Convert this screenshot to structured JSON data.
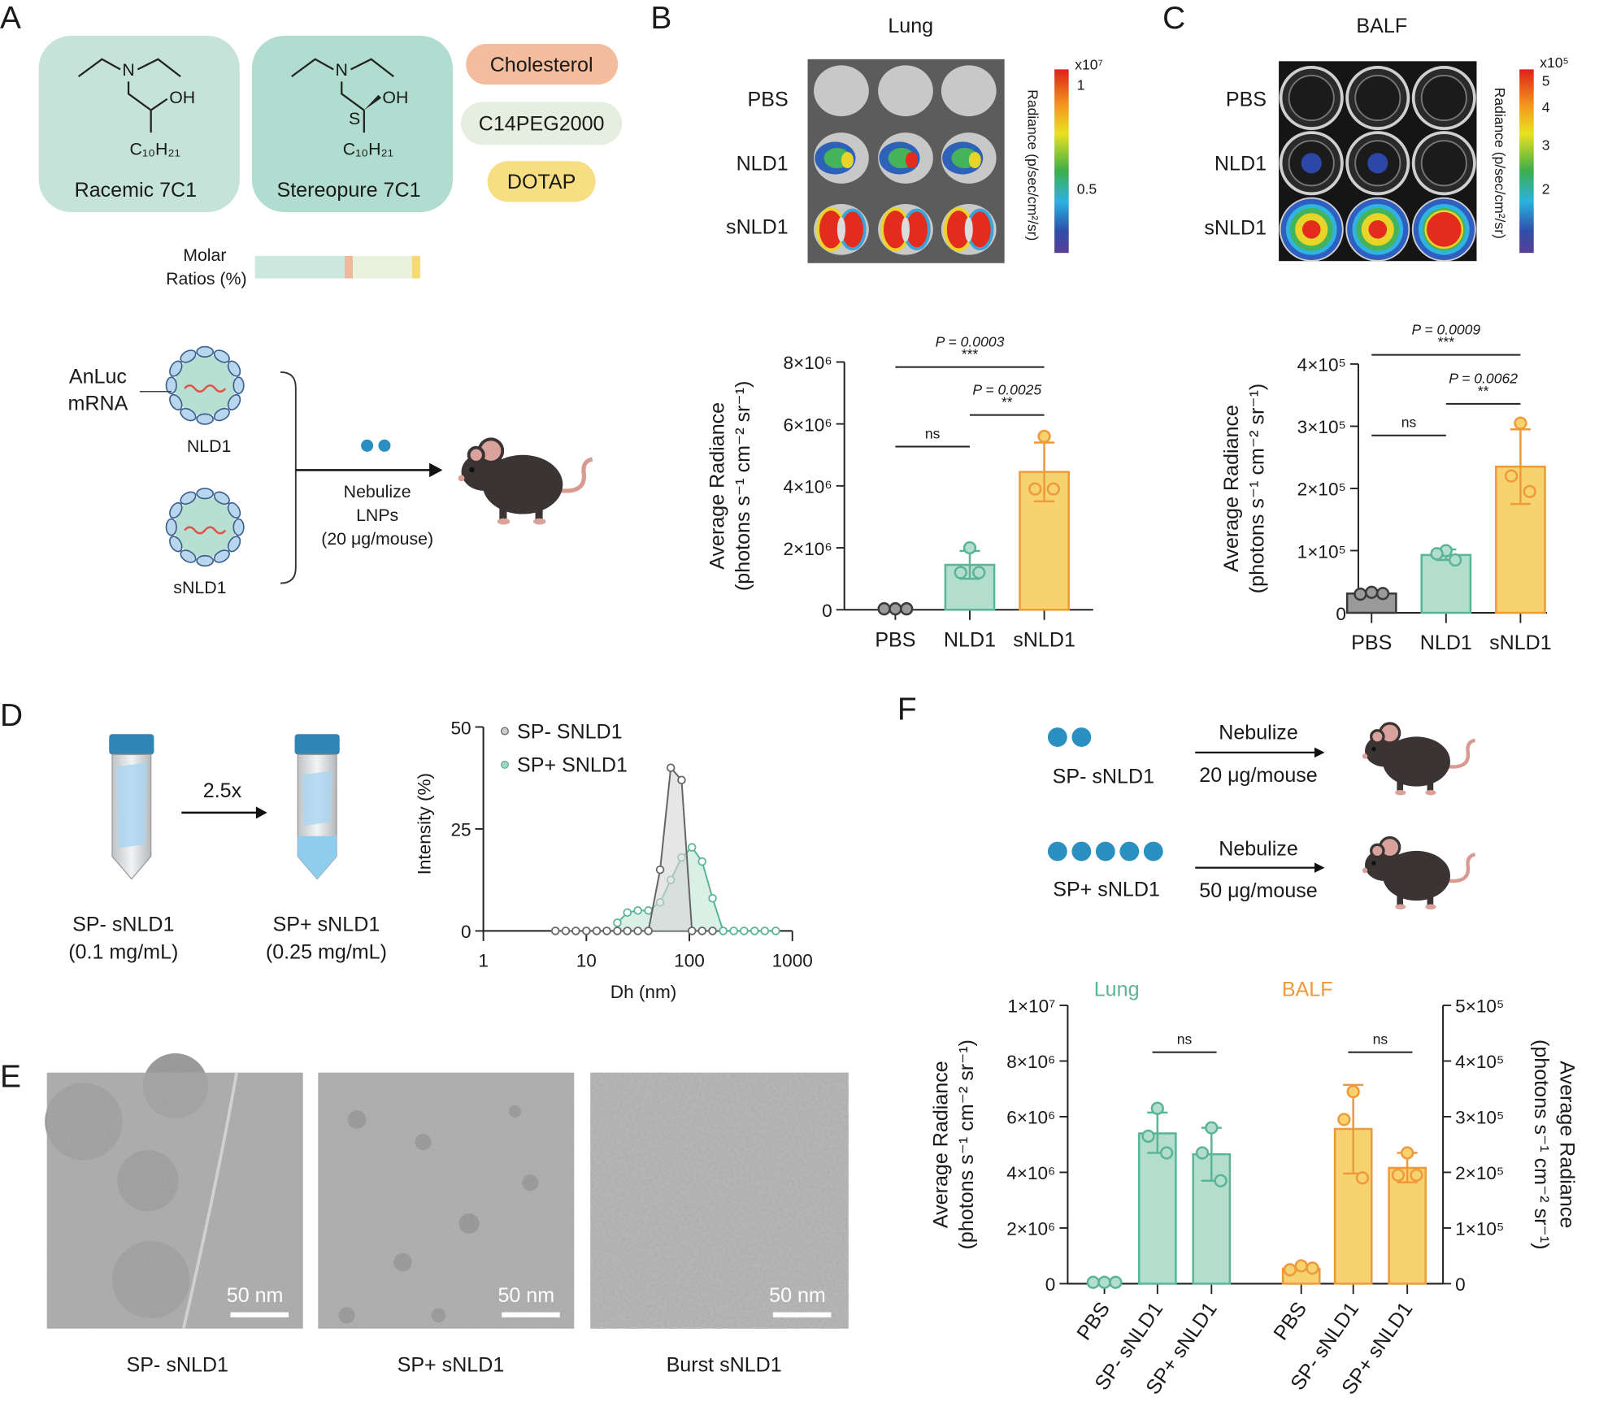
{
  "panel_labels": [
    "A",
    "B",
    "C",
    "D",
    "E",
    "F"
  ],
  "colors": {
    "teal_fill": "#b3dece",
    "teal_stroke": "#5ab596",
    "orange_fill": "#f7d36f",
    "orange_stroke": "#ef9a3a",
    "gray_fill": "#9a9a9a",
    "gray_stroke": "#3a3a3a",
    "racemic_box": "#c6e3da",
    "stereopure_box": "#b1ddd0",
    "cholesterol": "#f3bc9c",
    "peg": "#e6efdf",
    "dotap": "#f7de82",
    "lnp_dot": "#2a8fc1"
  },
  "panelA": {
    "lipids": [
      "Racemic 7C1",
      "Stereopure 7C1"
    ],
    "chem": {
      "N": "N",
      "OH": "OH",
      "S": "S",
      "chain": "C₁₀H₂₁"
    },
    "components": [
      "Cholesterol",
      "C14PEG2000",
      "DOTAP"
    ],
    "molar_label": [
      "Molar",
      "Ratios (%)"
    ],
    "mrna_label": [
      "AnLuc",
      "mRNA"
    ],
    "lnp": [
      "NLD1",
      "sNLD1"
    ],
    "nebulize": [
      "Nebulize",
      "LNPs",
      "(20 μg/mouse)"
    ]
  },
  "panelB": {
    "title": "Lung",
    "rows": [
      "PBS",
      "NLD1",
      "sNLD1"
    ],
    "colorbar": {
      "exp": "x10⁷",
      "ticks": [
        "1",
        "0.5"
      ],
      "label": "Radiance (p/sec/cm²/sr)"
    }
  },
  "panelC": {
    "title": "BALF",
    "rows": [
      "PBS",
      "NLD1",
      "sNLD1"
    ],
    "colorbar": {
      "exp": "x10⁵",
      "ticks": [
        "5",
        "4",
        "3",
        "2"
      ],
      "label": "Radiance (p/sec/cm²/sr)"
    }
  },
  "panelD": {
    "tubes": [
      {
        "name": "SP- sNLD1",
        "conc": "(0.1 mg/mL)"
      },
      {
        "name": "SP+ sNLD1",
        "conc": "(0.25 mg/mL)"
      }
    ],
    "arrow": "2.5x"
  },
  "panelE": {
    "images": [
      {
        "caption": "SP- sNLD1",
        "scale": "50 nm"
      },
      {
        "caption": "SP+ sNLD1",
        "scale": "50 nm"
      },
      {
        "caption": "Burst sNLD1",
        "scale": "50 nm"
      }
    ]
  },
  "panelF": {
    "groups": [
      {
        "label": "SP- sNLD1",
        "arrow_top": "Nebulize",
        "arrow_bottom": "20 μg/mouse",
        "dots": 2
      },
      {
        "label": "SP+ sNLD1",
        "arrow_top": "Nebulize",
        "arrow_bottom": "50 μg/mouse",
        "dots": 5
      }
    ]
  },
  "chart_data": [
    {
      "id": "B",
      "type": "bar",
      "title": "",
      "categories": [
        "PBS",
        "NLD1",
        "sNLD1"
      ],
      "values": [
        30000,
        1450000,
        4450000
      ],
      "points": [
        [
          30000,
          30000,
          30000
        ],
        [
          2000000,
          1200000,
          1200000
        ],
        [
          5600000,
          3900000,
          3900000
        ]
      ],
      "errors": [
        [
          0,
          60000
        ],
        [
          1000000,
          1900000
        ],
        [
          3500000,
          5400000
        ]
      ],
      "series_colors": [
        "gray",
        "teal",
        "orange"
      ],
      "ylabel": [
        "Average Radiance",
        "(photons s⁻¹ cm⁻² sr⁻¹)"
      ],
      "ylim": [
        0,
        8000000
      ],
      "yticks": [
        0,
        2000000,
        4000000,
        6000000,
        8000000
      ],
      "ytick_labels": [
        "0",
        "2×10⁶",
        "4×10⁶",
        "6×10⁶",
        "8×10⁶"
      ],
      "significance": [
        {
          "from": 0,
          "to": 1,
          "p": "",
          "stars": "ns"
        },
        {
          "from": 1,
          "to": 2,
          "p": "P = 0.0025",
          "stars": "**"
        },
        {
          "from": 0,
          "to": 2,
          "p": "P = 0.0003",
          "stars": "***"
        }
      ]
    },
    {
      "id": "C",
      "type": "bar",
      "title": "",
      "categories": [
        "PBS",
        "NLD1",
        "sNLD1"
      ],
      "values": [
        31000,
        93000,
        235000
      ],
      "points": [
        [
          30000,
          33000,
          31000
        ],
        [
          100000,
          95000,
          85000
        ],
        [
          305000,
          220000,
          195000
        ]
      ],
      "errors": [
        [
          27000,
          35000
        ],
        [
          85000,
          102000
        ],
        [
          175000,
          295000
        ]
      ],
      "series_colors": [
        "gray",
        "teal",
        "orange"
      ],
      "ylabel": [
        "Average Radiance",
        "(photons s⁻¹ cm⁻² sr⁻¹)"
      ],
      "ylim": [
        0,
        400000
      ],
      "yticks": [
        0,
        100000,
        200000,
        300000,
        400000
      ],
      "ytick_labels": [
        "0",
        "1×10⁵",
        "2×10⁵",
        "3×10⁵",
        "4×10⁵"
      ],
      "significance": [
        {
          "from": 0,
          "to": 1,
          "p": "",
          "stars": "ns"
        },
        {
          "from": 1,
          "to": 2,
          "p": "P = 0.0062",
          "stars": "**"
        },
        {
          "from": 0,
          "to": 2,
          "p": "P = 0.0009",
          "stars": "***"
        }
      ]
    },
    {
      "id": "D",
      "type": "line",
      "title": "",
      "xlabel": "Dh (nm)",
      "ylabel": "Intensity (%)",
      "xscale": "log",
      "xlim": [
        1,
        1000
      ],
      "ylim": [
        0,
        50
      ],
      "xticks": [
        1,
        10,
        100,
        1000
      ],
      "xtick_labels": [
        "1",
        "10",
        "100",
        "1000"
      ],
      "yticks": [
        0,
        25,
        50
      ],
      "ytick_labels": [
        "0",
        "25",
        "50"
      ],
      "legend_position": "top-left",
      "series": [
        {
          "name": "SP- SNLD1",
          "color": "gray",
          "x": [
            5,
            6.3,
            7.9,
            10,
            12.6,
            15.8,
            20,
            25,
            31.6,
            40,
            52,
            66,
            84,
            106,
            133,
            168
          ],
          "y": [
            0,
            0,
            0,
            0,
            0,
            0,
            0,
            0,
            0,
            0,
            15,
            40,
            37,
            0,
            0,
            0
          ]
        },
        {
          "name": "SP+ SNLD1",
          "color": "teal",
          "x": [
            20,
            25,
            31.6,
            40,
            52,
            66,
            84,
            106,
            133,
            168,
            213,
            270,
            340,
            430,
            540,
            690
          ],
          "y": [
            2,
            4.5,
            5,
            5,
            7,
            12.5,
            18,
            20.5,
            17,
            8,
            0,
            0,
            0,
            0,
            0,
            0
          ]
        }
      ]
    },
    {
      "id": "F",
      "type": "bar",
      "title": "",
      "groups": [
        {
          "name": "Lung",
          "axis": "left",
          "color": "teal",
          "categories": [
            "PBS",
            "SP- sNLD1",
            "SP+ sNLD1"
          ],
          "values": [
            50000,
            5400000,
            4650000
          ],
          "points": [
            [
              50000,
              50000,
              50000
            ],
            [
              6300000,
              5300000,
              4700000
            ],
            [
              5600000,
              4700000,
              3700000
            ]
          ],
          "errors": [
            null,
            [
              4700000,
              6150000
            ],
            [
              3700000,
              5600000
            ]
          ]
        },
        {
          "name": "BALF",
          "axis": "right",
          "color": "orange",
          "categories": [
            "PBS",
            "SP- sNLD1",
            "SP+ sNLD1"
          ],
          "values": [
            27000,
            278000,
            208000
          ],
          "points": [
            [
              25000,
              32000,
              28000
            ],
            [
              345000,
              295000,
              190000
            ],
            [
              235000,
              195000,
              195000
            ]
          ],
          "errors": [
            null,
            [
              198000,
              357000
            ],
            [
              182000,
              235000
            ]
          ]
        }
      ],
      "left_axis": {
        "ylim": [
          0,
          10000000
        ],
        "yticks": [
          0,
          2000000,
          4000000,
          6000000,
          8000000,
          10000000
        ],
        "ytick_labels": [
          "0",
          "2×10⁶",
          "4×10⁶",
          "6×10⁶",
          "8×10⁶",
          "1×10⁷"
        ],
        "label": [
          "Average Radiance",
          "(photons s⁻¹ cm⁻² sr⁻¹)"
        ]
      },
      "right_axis": {
        "ylim": [
          0,
          500000
        ],
        "yticks": [
          0,
          100000,
          200000,
          300000,
          400000,
          500000
        ],
        "ytick_labels": [
          "0",
          "1×10⁵",
          "2×10⁵",
          "3×10⁵",
          "4×10⁵",
          "5×10⁵"
        ],
        "label": [
          "Average Radiance",
          "(photons s⁻¹ cm⁻² sr⁻¹)"
        ]
      },
      "significance": [
        {
          "group": 0,
          "from": 1,
          "to": 2,
          "stars": "ns"
        },
        {
          "group": 1,
          "from": 1,
          "to": 2,
          "stars": "ns"
        }
      ]
    }
  ]
}
